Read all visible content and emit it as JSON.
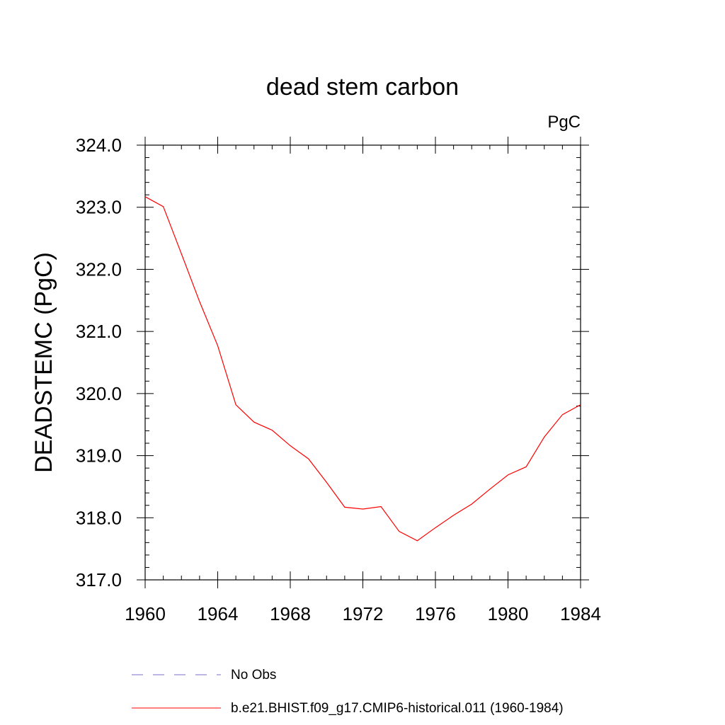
{
  "chart_data": {
    "type": "line",
    "title": "dead stem carbon",
    "units_label": "PgC",
    "ylabel": "DEADSTEMC  (PgC)",
    "xlabel": "",
    "xlim": [
      1960,
      1984
    ],
    "ylim": [
      317.0,
      324.0
    ],
    "x_ticks": [
      1960,
      1964,
      1968,
      1972,
      1976,
      1980,
      1984
    ],
    "x_tick_labels": [
      "1960",
      "1964",
      "1968",
      "1972",
      "1976",
      "1980",
      "1984"
    ],
    "y_ticks": [
      317.0,
      318.0,
      319.0,
      320.0,
      321.0,
      322.0,
      323.0,
      324.0
    ],
    "y_tick_labels": [
      "317.0",
      "318.0",
      "319.0",
      "320.0",
      "321.0",
      "322.0",
      "323.0",
      "324.0"
    ],
    "grid": false,
    "legend_position": "bottom",
    "legend": [
      {
        "label": "No Obs",
        "color": "#7b6fd0",
        "style": "dashed"
      },
      {
        "label": "b.e21.BHIST.f09_g17.CMIP6-historical.011 (1960-1984)",
        "color": "#ff0000",
        "style": "solid"
      }
    ],
    "series": [
      {
        "name": "b.e21.BHIST.f09_g17.CMIP6-historical.011 (1960-1984)",
        "color": "#ff0000",
        "x": [
          1960,
          1961,
          1962,
          1963,
          1964,
          1965,
          1966,
          1967,
          1968,
          1969,
          1970,
          1971,
          1972,
          1973,
          1974,
          1975,
          1976,
          1977,
          1978,
          1979,
          1980,
          1981,
          1982,
          1983,
          1984
        ],
        "y": [
          323.17,
          323.01,
          322.25,
          321.48,
          320.77,
          319.82,
          319.54,
          319.41,
          319.16,
          318.95,
          318.57,
          318.17,
          318.14,
          318.18,
          317.78,
          317.63,
          317.84,
          318.04,
          318.22,
          318.46,
          318.69,
          318.82,
          319.3,
          319.66,
          319.82
        ]
      }
    ]
  }
}
